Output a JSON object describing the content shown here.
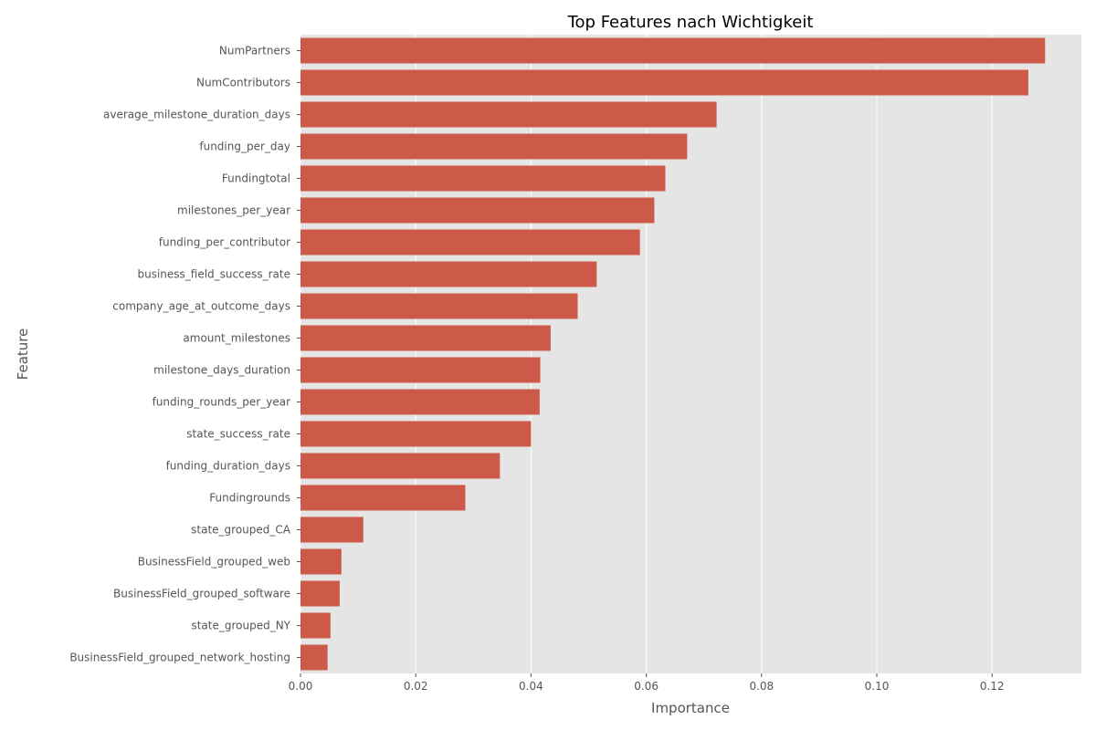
{
  "chart_data": {
    "type": "bar",
    "orientation": "horizontal",
    "title": "Top Features nach Wichtigkeit",
    "xlabel": "Importance",
    "ylabel": "Feature",
    "xlim": [
      0,
      0.1355
    ],
    "xticks": [
      0.0,
      0.02,
      0.04,
      0.06,
      0.08,
      0.1,
      0.12
    ],
    "xtick_labels": [
      "0.00",
      "0.02",
      "0.04",
      "0.06",
      "0.08",
      "0.10",
      "0.12"
    ],
    "grid": true,
    "bar_color": "#cd5a48",
    "background_color": "#e5e5e5",
    "categories": [
      "NumPartners",
      "NumContributors",
      "average_milestone_duration_days",
      "funding_per_day",
      "Fundingtotal",
      "milestones_per_year",
      "funding_per_contributor",
      "business_field_success_rate",
      "company_age_at_outcome_days",
      "amount_milestones",
      "milestone_days_duration",
      "funding_rounds_per_year",
      "state_success_rate",
      "funding_duration_days",
      "Fundingrounds",
      "state_grouped_CA",
      "BusinessField_grouped_web",
      "BusinessField_grouped_software",
      "state_grouped_NY",
      "BusinessField_grouped_network_hosting"
    ],
    "values": [
      0.1292,
      0.1263,
      0.0722,
      0.0671,
      0.0633,
      0.0614,
      0.0589,
      0.0514,
      0.0481,
      0.0434,
      0.0416,
      0.0415,
      0.04,
      0.0346,
      0.0286,
      0.0109,
      0.0071,
      0.0068,
      0.0052,
      0.0047
    ]
  }
}
